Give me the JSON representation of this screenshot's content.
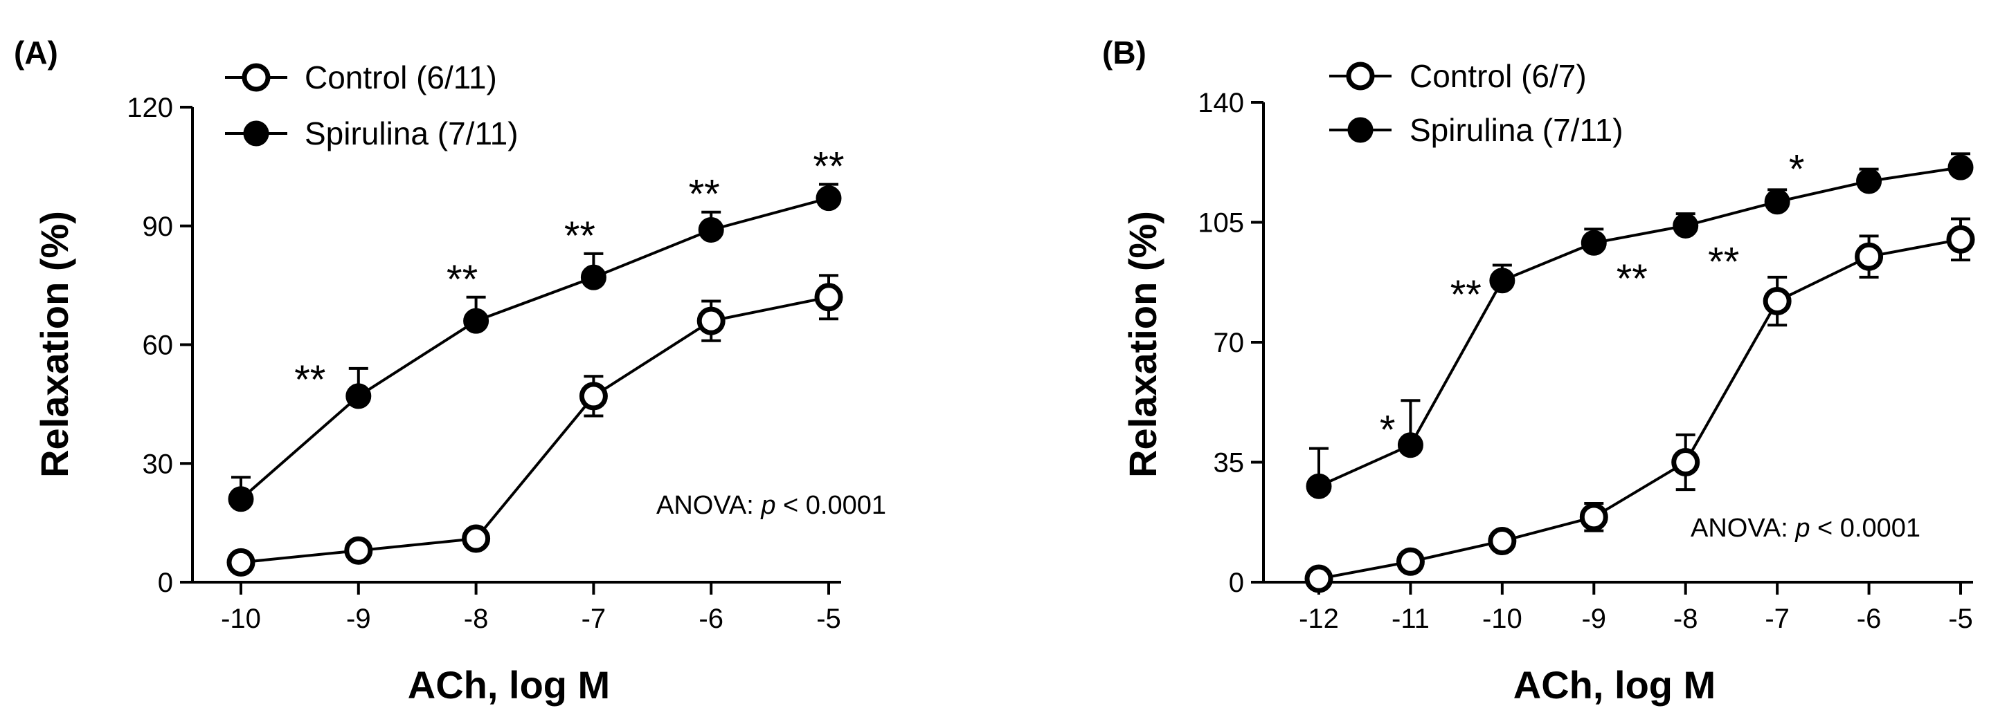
{
  "chart_data": [
    {
      "type": "line",
      "panel_label": "(A)",
      "xlabel": "ACh, log M",
      "ylabel": "Relaxation (%)",
      "x": [
        -10,
        -9,
        -8,
        -7,
        -6,
        -5
      ],
      "xticks": [
        "-10",
        "-9",
        "-8",
        "-7",
        "-6",
        "-5"
      ],
      "ylim": [
        0,
        120
      ],
      "yticks": [
        0,
        30,
        60,
        90,
        120
      ],
      "annotation_prefix": "ANOVA: ",
      "annotation_p": "p",
      "annotation_suffix": " < 0.0001",
      "legend_position": "top-left",
      "series": [
        {
          "name": "Control (6/11)",
          "marker": "open-circle",
          "values": [
            5,
            8,
            11,
            47,
            66,
            72
          ],
          "errors": [
            1.5,
            1.5,
            1.5,
            5,
            5,
            5.5
          ]
        },
        {
          "name": "Spirulina (7/11)",
          "marker": "filled-circle",
          "values": [
            21,
            47,
            66,
            77,
            89,
            97
          ],
          "errors": [
            5.5,
            7,
            6,
            6,
            4.5,
            3.5
          ]
        }
      ],
      "significance": [
        "",
        "**",
        "**",
        "**",
        "**",
        "**"
      ]
    },
    {
      "type": "line",
      "panel_label": "(B)",
      "xlabel": "ACh, log M",
      "ylabel": "Relaxation (%)",
      "x": [
        -12,
        -11,
        -10,
        -9,
        -8,
        -7,
        -6,
        -5
      ],
      "xticks": [
        "-12",
        "-11",
        "-10",
        "-9",
        "-8",
        "-7",
        "-6",
        "-5"
      ],
      "ylim": [
        0,
        140
      ],
      "yticks": [
        0,
        35,
        70,
        105,
        140
      ],
      "annotation_prefix": "ANOVA: ",
      "annotation_p": "p",
      "annotation_suffix": " < 0.0001",
      "legend_position": "top-left",
      "series": [
        {
          "name": "Control (6/7)",
          "marker": "open-circle",
          "values": [
            1,
            6,
            12,
            19,
            35,
            82,
            95,
            100
          ],
          "errors": [
            1.5,
            1.5,
            2.5,
            4,
            8,
            7,
            6,
            6
          ]
        },
        {
          "name": "Spirulina (7/11)",
          "marker": "filled-circle",
          "values": [
            28,
            40,
            88,
            99,
            104,
            111,
            117,
            121
          ],
          "errors": [
            11,
            13,
            4.5,
            4,
            3.5,
            3.5,
            3.5,
            4
          ]
        }
      ],
      "significance": [
        "",
        "*",
        "**",
        "**",
        "**",
        "*",
        "",
        ""
      ]
    }
  ]
}
